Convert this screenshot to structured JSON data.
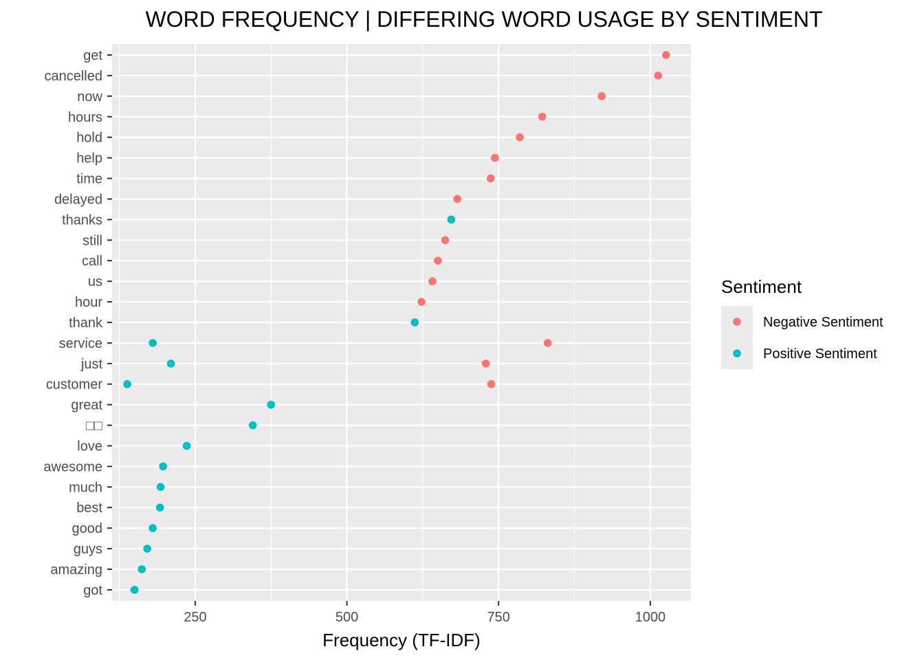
{
  "chart_data": {
    "type": "scatter",
    "title": "WORD FREQUENCY | DIFFERING WORD USAGE BY SENTIMENT",
    "xlabel": "Frequency (TF-IDF)",
    "ylabel": "",
    "xlim": [
      113,
      1067
    ],
    "x_ticks": [
      250,
      500,
      750,
      1000
    ],
    "x_tick_labels": [
      "250",
      "500",
      "750",
      "1000"
    ],
    "categories": [
      "get",
      "cancelled",
      "now",
      "hours",
      "hold",
      "help",
      "time",
      "delayed",
      "thanks",
      "still",
      "call",
      "us",
      "hour",
      "thank",
      "service",
      "just",
      "customer",
      "great",
      "□□",
      "love",
      "awesome",
      "much",
      "best",
      "good",
      "guys",
      "amazing",
      "got"
    ],
    "grid": true,
    "legend": {
      "title": "Sentiment",
      "position": "right"
    },
    "series": [
      {
        "name": "Negative Sentiment",
        "color": "#F8766D",
        "points": [
          {
            "word": "get",
            "x": 1026
          },
          {
            "word": "cancelled",
            "x": 1013
          },
          {
            "word": "now",
            "x": 920
          },
          {
            "word": "hours",
            "x": 822
          },
          {
            "word": "hold",
            "x": 785
          },
          {
            "word": "help",
            "x": 744
          },
          {
            "word": "time",
            "x": 737
          },
          {
            "word": "delayed",
            "x": 682
          },
          {
            "word": "still",
            "x": 662
          },
          {
            "word": "call",
            "x": 650
          },
          {
            "word": "us",
            "x": 641
          },
          {
            "word": "hour",
            "x": 623
          },
          {
            "word": "service",
            "x": 831
          },
          {
            "word": "just",
            "x": 729
          },
          {
            "word": "customer",
            "x": 738
          }
        ]
      },
      {
        "name": "Positive Sentiment",
        "color": "#00BFC4",
        "points": [
          {
            "word": "thanks",
            "x": 672
          },
          {
            "word": "thank",
            "x": 612
          },
          {
            "word": "service",
            "x": 180
          },
          {
            "word": "just",
            "x": 210
          },
          {
            "word": "customer",
            "x": 138
          },
          {
            "word": "great",
            "x": 375
          },
          {
            "word": "□□",
            "x": 345
          },
          {
            "word": "love",
            "x": 236
          },
          {
            "word": "awesome",
            "x": 197
          },
          {
            "word": "much",
            "x": 193
          },
          {
            "word": "best",
            "x": 192
          },
          {
            "word": "good",
            "x": 180
          },
          {
            "word": "guys",
            "x": 171
          },
          {
            "word": "amazing",
            "x": 162
          },
          {
            "word": "got",
            "x": 150
          }
        ]
      }
    ]
  }
}
